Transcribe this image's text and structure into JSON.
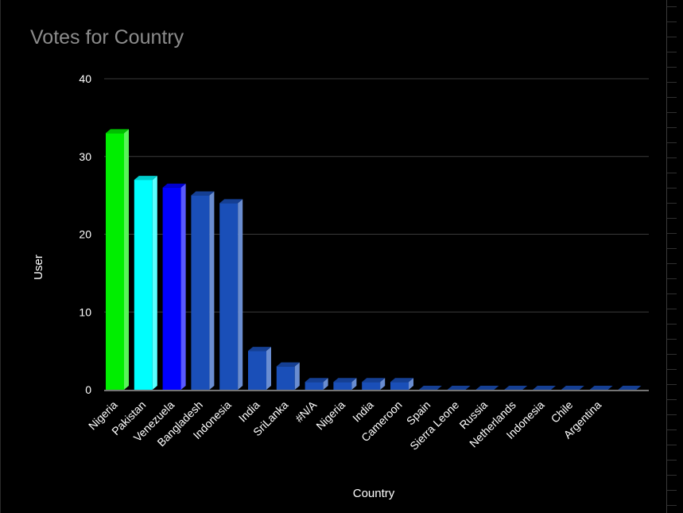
{
  "chart_data": {
    "type": "bar",
    "title": "Votes for Country",
    "xlabel": "Country",
    "ylabel": "User",
    "ylim": [
      0,
      40
    ],
    "yticks": [
      0,
      10,
      20,
      30,
      40
    ],
    "grid": true,
    "legend": "none",
    "categories": [
      "Nigeria",
      "Pakistan",
      "Venezuela",
      "Bangladesh",
      "Indonesia",
      "India",
      "SriLanka",
      "#N/A",
      "Nigeria",
      "India",
      "Cameroon",
      "Spain",
      "Sierra Leone",
      "Russia",
      "Netherlands",
      "Indonesia",
      "Chile",
      "Argentina",
      ""
    ],
    "values": [
      33,
      27,
      26,
      25,
      24,
      5,
      3,
      1,
      1,
      1,
      1,
      0,
      0,
      0,
      0,
      0,
      0,
      0,
      0
    ],
    "colors": [
      "#00ee00",
      "#00ffff",
      "#0000ff",
      "#1a4fb8",
      "#1a4fb8",
      "#1a4fb8",
      "#1a4fb8",
      "#1a4fb8",
      "#1a4fb8",
      "#1a4fb8",
      "#1a4fb8",
      "#1a4fb8",
      "#1a4fb8",
      "#1a4fb8",
      "#1a4fb8",
      "#1a4fb8",
      "#1a4fb8",
      "#1a4fb8",
      "#1a4fb8"
    ]
  }
}
